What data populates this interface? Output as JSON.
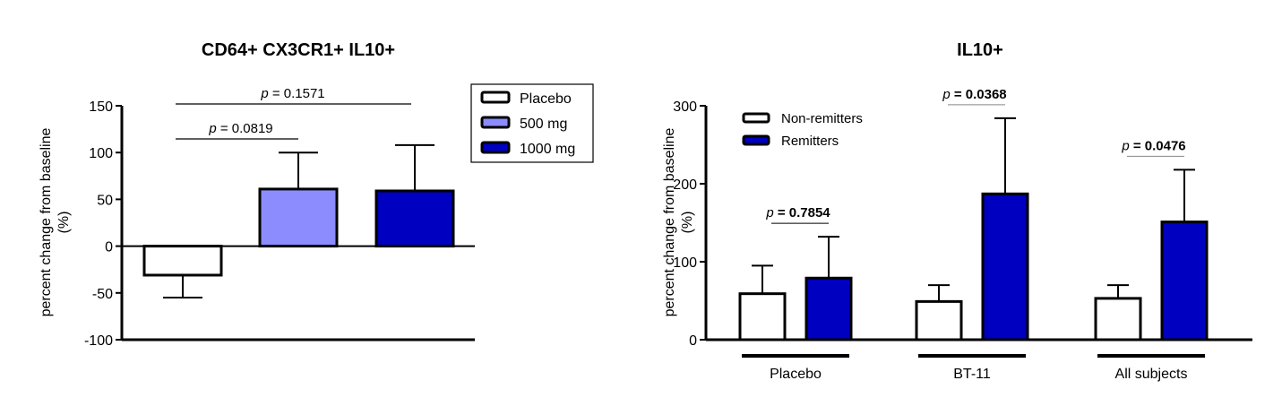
{
  "chart_data": [
    {
      "type": "bar",
      "title": "CD64+ CX3CR1+ IL10+",
      "ylabel": "percent change from baseline",
      "ylabel2": "(%)",
      "xlabel": "",
      "ylim": [
        -100,
        150
      ],
      "yticks": [
        -100,
        -50,
        0,
        50,
        100,
        150
      ],
      "categories": [
        "Placebo",
        "500 mg",
        "1000 mg"
      ],
      "values": [
        -31,
        61,
        59
      ],
      "errors": [
        24,
        39,
        49
      ],
      "colors": [
        "#ffffff",
        "#8c8cff",
        "#0000c0"
      ],
      "legend": {
        "placement": "top-right",
        "entries": [
          {
            "label": "Placebo",
            "color": "#ffffff"
          },
          {
            "label": "500 mg",
            "color": "#8c8cff"
          },
          {
            "label": "1000 mg",
            "color": "#0000c0"
          }
        ]
      },
      "annotations": [
        {
          "text": "p = 0.1571",
          "p_label": "p",
          "value": "= 0.1571",
          "from": 0,
          "to": 2
        },
        {
          "text": "p = 0.0819",
          "p_label": "p",
          "value": "= 0.0819",
          "from": 0,
          "to": 1
        }
      ]
    },
    {
      "type": "bar",
      "title": "IL10+",
      "ylabel": "percent change from baseline",
      "ylabel2": "(%)",
      "xlabel": "",
      "ylim": [
        0,
        300
      ],
      "yticks": [
        0,
        100,
        200,
        300
      ],
      "categories": [
        "Placebo",
        "BT-11",
        "All subjects"
      ],
      "series": [
        {
          "name": "Non-remitters",
          "color": "#ffffff",
          "values": [
            59,
            49,
            53
          ],
          "errors": [
            36,
            21,
            17
          ]
        },
        {
          "name": "Remitters",
          "color": "#0000c0",
          "values": [
            79,
            187,
            151
          ],
          "errors": [
            53,
            97,
            67
          ]
        }
      ],
      "legend": {
        "placement": "top-left",
        "entries": [
          {
            "label": "Non-remitters",
            "color": "#ffffff"
          },
          {
            "label": "Remitters",
            "color": "#0000c0"
          }
        ]
      },
      "annotations": [
        {
          "text": "p = 0.7854",
          "p_label": "p",
          "value": "= 0.7854",
          "group": 0
        },
        {
          "text": "p = 0.0368",
          "p_label": "p",
          "value": "= 0.0368",
          "group": 1
        },
        {
          "text": "p = 0.0476",
          "p_label": "p",
          "value": "= 0.0476",
          "group": 2
        }
      ]
    }
  ]
}
